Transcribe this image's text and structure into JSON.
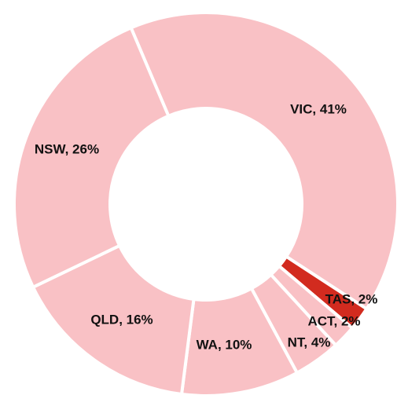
{
  "chart_data": {
    "type": "donut",
    "value_labels": [
      "VIC, 41%",
      "TAS, 2%",
      "ACT, 2%",
      "NT, 4%",
      "WA, 10%",
      "QLD, 16%",
      "NSW, 26%"
    ],
    "values": [
      41,
      2,
      2,
      4,
      10,
      16,
      26
    ],
    "colors": [
      "#f9c1c5",
      "#d22b1f",
      "#f9c1c5",
      "#f9c1c5",
      "#f9c1c5",
      "#f9c1c5",
      "#f9c1c5"
    ]
  }
}
